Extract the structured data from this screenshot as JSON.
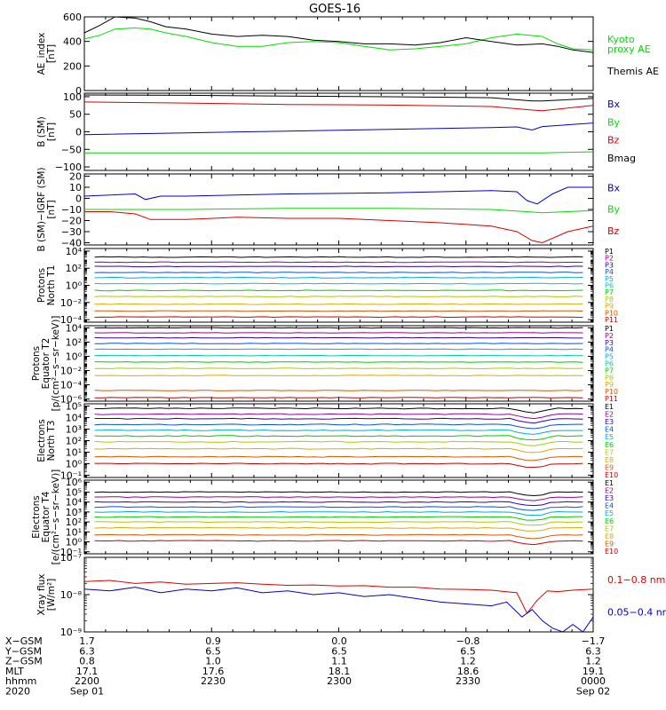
{
  "title": "GOES-16",
  "colors": {
    "black": "#000000",
    "green": "#00dd00",
    "blue": "#0000cc",
    "red": "#dd0000",
    "p1": "#000000",
    "p2": "#990099",
    "p3": "#3300aa",
    "p4": "#0055dd",
    "p5": "#00aadd",
    "p6": "#00ccaa",
    "p7": "#00cc00",
    "p8": "#aacc00",
    "p9": "#ddaa00",
    "p10": "#dd5500",
    "p11": "#cc0000"
  },
  "chart_data": [
    {
      "type": "line",
      "ylabel": "AE_index\n[nT]",
      "ylim": [
        0,
        600
      ],
      "yticks": [
        0,
        200,
        400,
        600
      ],
      "yticklabels": [
        "0",
        "200",
        "400",
        "600"
      ],
      "series": [
        {
          "name": "Kyoto\nproxy AE",
          "color": "green",
          "x": [
            0,
            0.03,
            0.06,
            0.1,
            0.13,
            0.16,
            0.2,
            0.25,
            0.3,
            0.35,
            0.4,
            0.45,
            0.5,
            0.55,
            0.6,
            0.65,
            0.7,
            0.75,
            0.8,
            0.85,
            0.9,
            0.93,
            0.96,
            1.0
          ],
          "y": [
            420,
            450,
            500,
            510,
            500,
            470,
            440,
            390,
            360,
            360,
            390,
            400,
            390,
            360,
            330,
            340,
            360,
            380,
            430,
            460,
            440,
            380,
            340,
            330
          ]
        },
        {
          "name": "Themis AE",
          "color": "black",
          "x": [
            0,
            0.03,
            0.06,
            0.1,
            0.13,
            0.16,
            0.2,
            0.25,
            0.3,
            0.35,
            0.4,
            0.45,
            0.5,
            0.55,
            0.6,
            0.65,
            0.7,
            0.75,
            0.8,
            0.85,
            0.9,
            0.93,
            0.96,
            1.0
          ],
          "y": [
            470,
            530,
            600,
            590,
            560,
            520,
            500,
            460,
            440,
            450,
            440,
            410,
            400,
            380,
            380,
            370,
            390,
            430,
            400,
            370,
            380,
            360,
            330,
            310
          ]
        }
      ]
    },
    {
      "type": "line",
      "ylabel": "B (SM)\n[nT]",
      "ylim": [
        -110,
        110
      ],
      "yticks": [
        -100,
        -50,
        0,
        50,
        100
      ],
      "yticklabels": [
        "−100",
        "−50",
        "0",
        "50",
        "100"
      ],
      "series": [
        {
          "name": "Bx",
          "color": "blue",
          "x": [
            0,
            0.2,
            0.4,
            0.6,
            0.8,
            0.85,
            0.88,
            0.9,
            1.0
          ],
          "y": [
            -8,
            -3,
            2,
            7,
            12,
            14,
            5,
            15,
            25
          ]
        },
        {
          "name": "By",
          "color": "green",
          "x": [
            0,
            0.2,
            0.4,
            0.6,
            0.8,
            0.9,
            1.0
          ],
          "y": [
            -60,
            -60,
            -60,
            -60,
            -60,
            -60,
            -57
          ]
        },
        {
          "name": "Bz",
          "color": "red",
          "x": [
            0,
            0.2,
            0.4,
            0.6,
            0.8,
            0.88,
            0.9,
            1.0
          ],
          "y": [
            85,
            82,
            78,
            76,
            72,
            62,
            60,
            75
          ]
        },
        {
          "name": "Bmag",
          "color": "black",
          "x": [
            0,
            0.2,
            0.4,
            0.6,
            0.8,
            0.88,
            0.9,
            1.0
          ],
          "y": [
            105,
            104,
            102,
            100,
            97,
            88,
            88,
            95
          ]
        }
      ]
    },
    {
      "type": "line",
      "ylabel": "B (SM)−IGRF (SM)\n[nT]",
      "ylim": [
        -42,
        22
      ],
      "yticks": [
        -40,
        -30,
        -20,
        -10,
        0,
        10,
        20
      ],
      "yticklabels": [
        "−40",
        "−30",
        "−20",
        "−10",
        "0",
        "10",
        "20"
      ],
      "series": [
        {
          "name": "Bx",
          "color": "blue",
          "x": [
            0,
            0.05,
            0.1,
            0.12,
            0.15,
            0.2,
            0.4,
            0.6,
            0.8,
            0.85,
            0.87,
            0.89,
            0.92,
            0.95,
            1.0
          ],
          "y": [
            2,
            3,
            4,
            -1,
            2,
            2,
            4,
            5,
            7,
            6,
            -2,
            -5,
            4,
            10,
            10
          ]
        },
        {
          "name": "By",
          "color": "green",
          "x": [
            0,
            0.2,
            0.4,
            0.6,
            0.8,
            0.87,
            0.9,
            0.95,
            1.0
          ],
          "y": [
            -10,
            -10,
            -9,
            -9,
            -10,
            -12,
            -13,
            -12,
            -11
          ]
        },
        {
          "name": "Bz",
          "color": "red",
          "x": [
            0,
            0.05,
            0.1,
            0.13,
            0.2,
            0.3,
            0.4,
            0.5,
            0.6,
            0.7,
            0.8,
            0.85,
            0.88,
            0.9,
            0.95,
            1.0
          ],
          "y": [
            -12,
            -12,
            -14,
            -19,
            -19,
            -17,
            -18,
            -18,
            -20,
            -22,
            -25,
            -30,
            -38,
            -40,
            -30,
            -25
          ]
        }
      ]
    },
    {
      "type": "line",
      "yscale": "log",
      "ylabel": "Protons\nNorth T1",
      "ylim": [
        -4.3,
        4.3
      ],
      "yticks": [
        -4,
        -2,
        0,
        2,
        4
      ],
      "yticklabels": [
        "10⁻⁴",
        "10⁻²",
        "10⁰",
        "10²",
        "10⁴"
      ],
      "series": [
        {
          "name": "P1",
          "color": "p1",
          "log_levels": 3.3
        },
        {
          "name": "P2",
          "color": "p2",
          "log_levels": 2.7
        },
        {
          "name": "P3",
          "color": "p3",
          "log_levels": 2.2
        },
        {
          "name": "P4",
          "color": "p4",
          "log_levels": 1.5
        },
        {
          "name": "P5",
          "color": "p5",
          "log_levels": 0.9
        },
        {
          "name": "P6",
          "color": "p6",
          "log_levels": 0.2
        },
        {
          "name": "P7",
          "color": "p7",
          "log_levels": -0.6
        },
        {
          "name": "P8",
          "color": "p8",
          "log_levels": -1.3
        },
        {
          "name": "P9",
          "color": "p9",
          "log_levels": -2.2
        },
        {
          "name": "P10",
          "color": "p10",
          "log_levels": -3.0
        },
        {
          "name": "P11",
          "color": "p11",
          "log_levels": -3.7
        }
      ]
    },
    {
      "type": "line",
      "yscale": "log",
      "ylabel": "Protons\nEquator T2\n[p/(cm²−s−sr−keV)]",
      "ylim": [
        -6.3,
        4.3
      ],
      "yticks": [
        -6,
        -4,
        -2,
        0,
        2,
        4
      ],
      "yticklabels": [
        "10⁻⁶",
        "10⁻⁴",
        "10⁻²",
        "10⁰",
        "10²",
        "10⁴"
      ],
      "series": [
        {
          "name": "P1",
          "color": "p1",
          "log_levels": 4.0
        },
        {
          "name": "P2",
          "color": "p2",
          "log_levels": 3.3
        },
        {
          "name": "P3",
          "color": "p3",
          "log_levels": 2.6
        },
        {
          "name": "P4",
          "color": "p4",
          "log_levels": 1.8
        },
        {
          "name": "P5",
          "color": "p5",
          "log_levels": 1.0
        },
        {
          "name": "P6",
          "color": "p6",
          "log_levels": 0.1
        },
        {
          "name": "P7",
          "color": "p7",
          "log_levels": -0.8
        },
        {
          "name": "P8",
          "color": "p8",
          "log_levels": -1.7
        },
        {
          "name": "P9",
          "color": "p9",
          "log_levels": -2.7
        },
        {
          "name": "P10",
          "color": "p10",
          "log_levels": -4.8
        },
        {
          "name": "P11",
          "color": "p11",
          "log_levels": -5.8
        }
      ]
    },
    {
      "type": "line",
      "yscale": "log",
      "ylabel": "Electrons\nNorth T3",
      "ylim": [
        -1.2,
        5.2
      ],
      "yticks": [
        -1,
        0,
        1,
        2,
        3,
        4,
        5
      ],
      "yticklabels": [
        "10⁻¹",
        "10⁰",
        "10¹",
        "10²",
        "10³",
        "10⁴",
        "10⁵"
      ],
      "series": [
        {
          "name": "E1",
          "color": "p1",
          "log_levels": 4.8
        },
        {
          "name": "E2",
          "color": "p2",
          "log_levels": 4.3
        },
        {
          "name": "E3",
          "color": "p3",
          "log_levels": 3.9
        },
        {
          "name": "E4",
          "color": "p4",
          "log_levels": 3.4
        },
        {
          "name": "E5",
          "color": "p5",
          "log_levels": 2.9
        },
        {
          "name": "E6",
          "color": "p7",
          "log_levels": 2.4
        },
        {
          "name": "E7",
          "color": "p8",
          "log_levels": 1.9
        },
        {
          "name": "E8",
          "color": "p9",
          "log_levels": 1.3
        },
        {
          "name": "E9",
          "color": "p10",
          "log_levels": 0.6
        },
        {
          "name": "E10",
          "color": "p11",
          "log_levels": 0.0
        }
      ]
    },
    {
      "type": "line",
      "yscale": "log",
      "ylabel": "Electrons\nEquator T4\n[e/(cm²−s−sr−keV)]",
      "ylim": [
        -1.2,
        6.2
      ],
      "yticks": [
        -1,
        0,
        1,
        2,
        3,
        4,
        5,
        6
      ],
      "yticklabels": [
        "10⁻¹",
        "10⁰",
        "10¹",
        "10²",
        "10³",
        "10⁴",
        "10⁵",
        "10⁶"
      ],
      "series": [
        {
          "name": "E1",
          "color": "p1",
          "log_levels": 5.0
        },
        {
          "name": "E2",
          "color": "p2",
          "log_levels": 4.5
        },
        {
          "name": "E3",
          "color": "p3",
          "log_levels": 4.0
        },
        {
          "name": "E4",
          "color": "p4",
          "log_levels": 3.5
        },
        {
          "name": "E5",
          "color": "p5",
          "log_levels": 3.0
        },
        {
          "name": "E6",
          "color": "p7",
          "log_levels": 2.5
        },
        {
          "name": "E7",
          "color": "p8",
          "log_levels": 2.0
        },
        {
          "name": "E8",
          "color": "p9",
          "log_levels": 1.4
        },
        {
          "name": "E9",
          "color": "p10",
          "log_levels": 0.7
        },
        {
          "name": "E10",
          "color": "p11",
          "log_levels": 0.1
        }
      ]
    },
    {
      "type": "line",
      "yscale": "log",
      "ylabel": "Xray flux\n[W/m²]",
      "ylim": [
        -9,
        -7
      ],
      "yticks": [
        -9,
        -8,
        -7
      ],
      "yticklabels": [
        "10⁻⁹",
        "10⁻⁸",
        "10⁻⁷"
      ],
      "series": [
        {
          "name": "0.1−0.8 nm",
          "color": "red",
          "x": [
            0,
            0.05,
            0.1,
            0.15,
            0.2,
            0.25,
            0.3,
            0.35,
            0.4,
            0.45,
            0.5,
            0.55,
            0.6,
            0.65,
            0.7,
            0.75,
            0.8,
            0.85,
            0.87,
            0.89,
            0.91,
            0.93,
            0.96,
            1.0
          ],
          "y": [
            -7.65,
            -7.62,
            -7.7,
            -7.66,
            -7.72,
            -7.7,
            -7.68,
            -7.72,
            -7.75,
            -7.74,
            -7.77,
            -7.76,
            -7.8,
            -7.8,
            -7.85,
            -7.86,
            -7.88,
            -7.95,
            -8.5,
            -8.15,
            -7.9,
            -7.92,
            -7.88,
            -7.85
          ]
        },
        {
          "name": "0.05−0.4 nm",
          "color": "blue",
          "x": [
            0,
            0.05,
            0.1,
            0.15,
            0.2,
            0.25,
            0.3,
            0.35,
            0.4,
            0.45,
            0.5,
            0.55,
            0.6,
            0.65,
            0.7,
            0.75,
            0.8,
            0.83,
            0.86,
            0.88,
            0.9,
            0.92,
            0.94,
            0.96,
            0.98,
            1.0
          ],
          "y": [
            -7.85,
            -7.9,
            -7.8,
            -7.95,
            -7.85,
            -7.9,
            -7.82,
            -7.95,
            -7.9,
            -8.0,
            -7.95,
            -8.05,
            -8.0,
            -8.1,
            -8.2,
            -8.25,
            -8.3,
            -8.2,
            -8.6,
            -8.4,
            -8.7,
            -8.9,
            -9.0,
            -8.8,
            -9.0,
            -8.6
          ]
        }
      ]
    }
  ],
  "xaxis": {
    "tick_columns": [
      [
        "1.7",
        "6.3",
        "0.8",
        "17.1",
        "2200",
        "Sep 01"
      ],
      [
        "0.9",
        "6.5",
        "1.0",
        "17.6",
        "2230",
        ""
      ],
      [
        "0.0",
        "6.5",
        "1.1",
        "18.1",
        "2300",
        ""
      ],
      [
        "−0.8",
        "6.5",
        "1.2",
        "18.6",
        "2330",
        ""
      ],
      [
        "−1.7",
        "6.3",
        "1.2",
        "19.1",
        "0000",
        "Sep 02"
      ]
    ],
    "row_labels": [
      "X−GSM",
      "Y−GSM",
      "Z−GSM",
      "MLT",
      "hhmm",
      "2020"
    ]
  }
}
